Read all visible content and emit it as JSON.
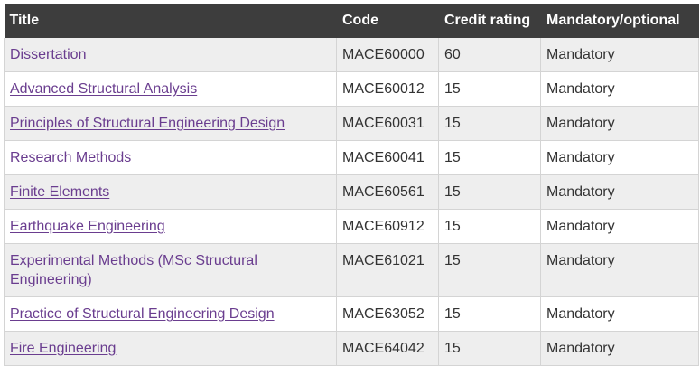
{
  "table": {
    "headers": {
      "title": "Title",
      "code": "Code",
      "credit": "Credit rating",
      "mandatory": "Mandatory/optional"
    },
    "rows": [
      {
        "title": "Dissertation",
        "code": "MACE60000",
        "credit": "60",
        "status": "Mandatory"
      },
      {
        "title": "Advanced Structural Analysis",
        "code": "MACE60012",
        "credit": "15",
        "status": "Mandatory"
      },
      {
        "title": "Principles of Structural Engineering Design",
        "code": "MACE60031",
        "credit": "15",
        "status": "Mandatory"
      },
      {
        "title": "Research Methods",
        "code": "MACE60041",
        "credit": "15",
        "status": "Mandatory"
      },
      {
        "title": "Finite Elements",
        "code": "MACE60561",
        "credit": "15",
        "status": "Mandatory"
      },
      {
        "title": "Earthquake Engineering",
        "code": "MACE60912",
        "credit": "15",
        "status": "Mandatory"
      },
      {
        "title": "Experimental Methods (MSc Structural Engineering)",
        "code": "MACE61021",
        "credit": "15",
        "status": "Mandatory"
      },
      {
        "title": "Practice of Structural Engineering Design",
        "code": "MACE63052",
        "credit": "15",
        "status": "Mandatory"
      },
      {
        "title": "Fire Engineering",
        "code": "MACE64042",
        "credit": "15",
        "status": "Mandatory"
      }
    ]
  },
  "colors": {
    "header_bg": "#3d3d3d",
    "link": "#6a3d8f",
    "row_alt": "#eeeeee"
  }
}
